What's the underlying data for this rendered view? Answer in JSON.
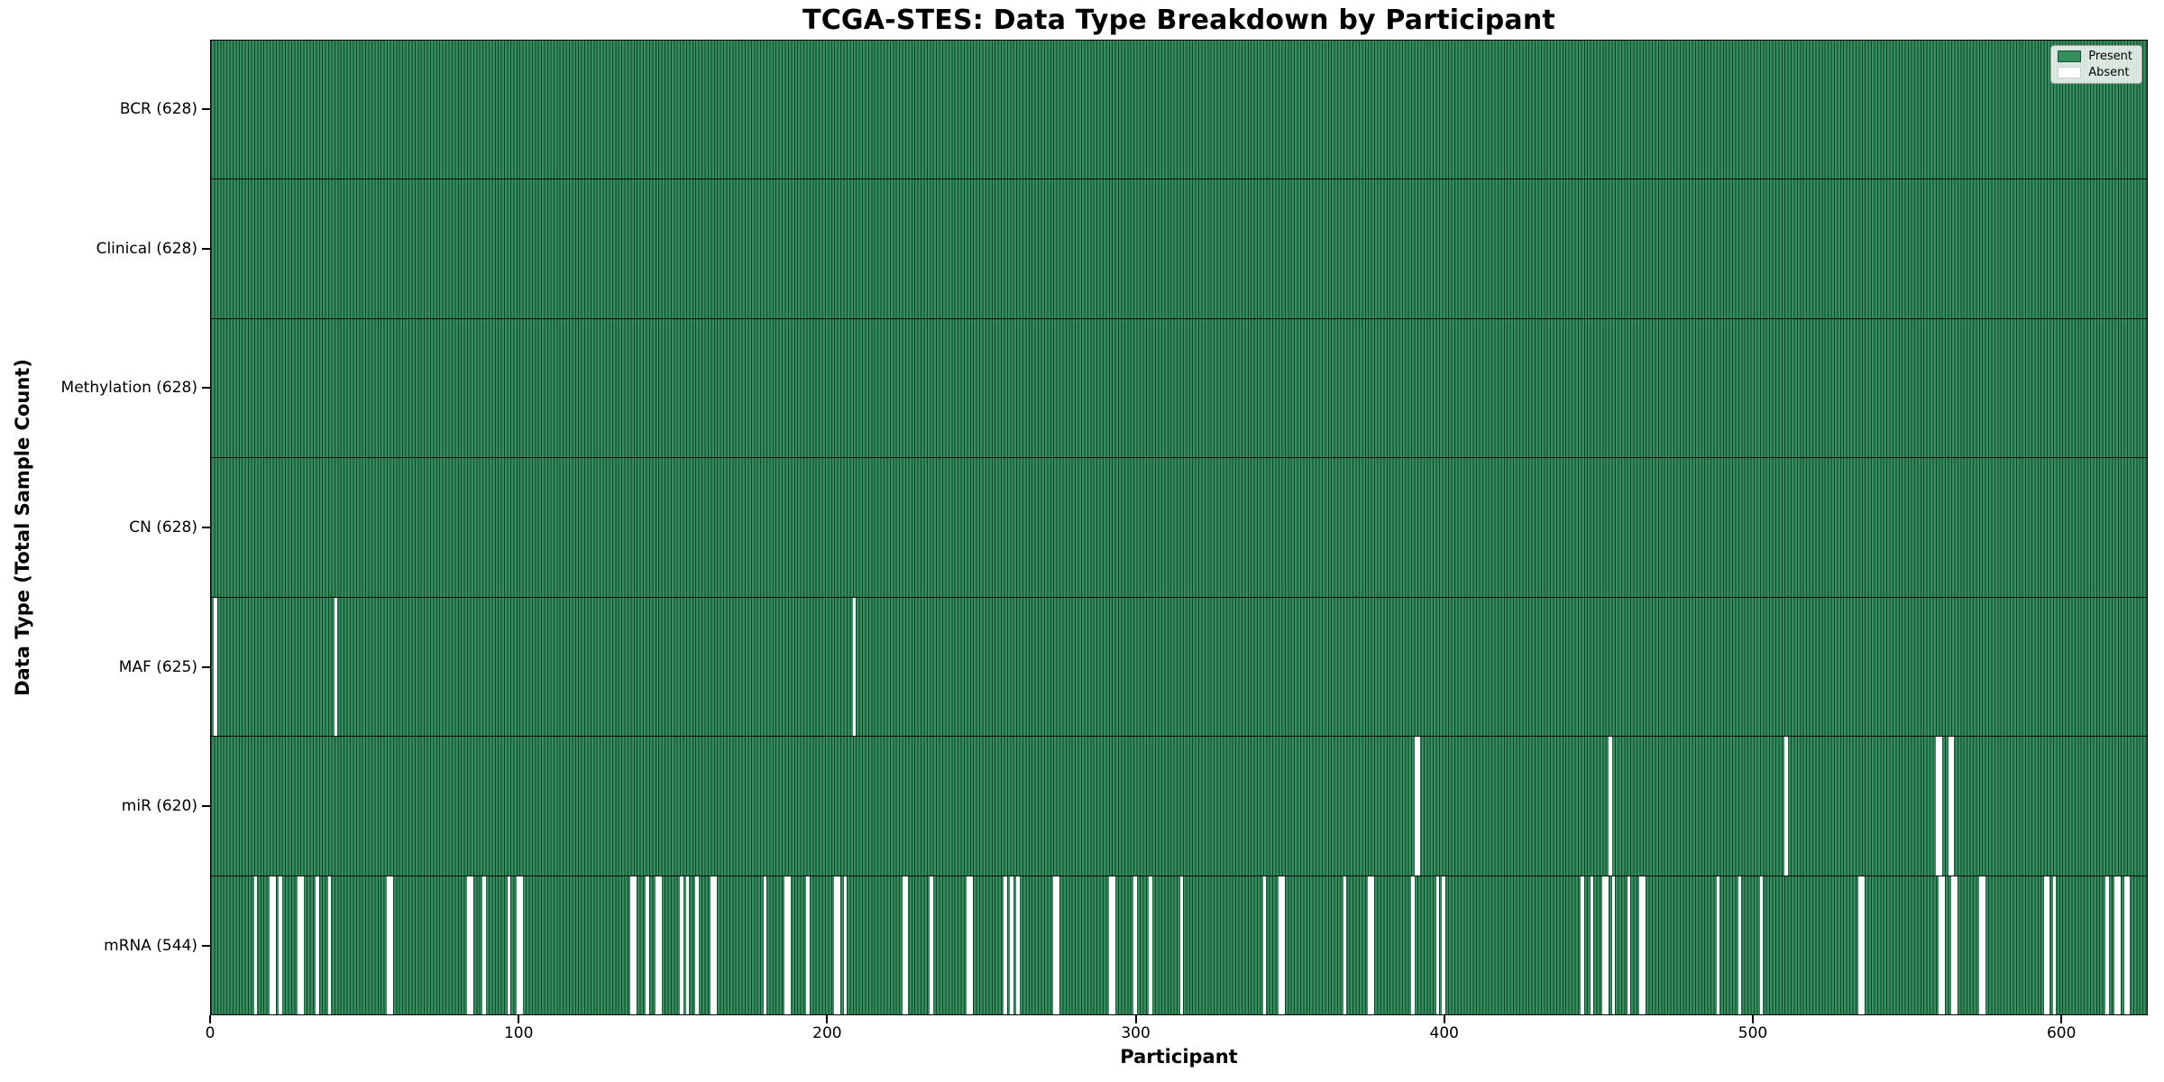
{
  "chart_data": {
    "type": "heatmap",
    "title": "TCGA-STES: Data Type Breakdown by Participant",
    "xlabel": "Participant",
    "ylabel": "Data Type (Total Sample Count)",
    "x_range": [
      0,
      628
    ],
    "x_ticks": [
      0,
      100,
      200,
      300,
      400,
      500,
      600
    ],
    "grid": false,
    "legend_position": "upper right",
    "legend": {
      "present": "Present",
      "absent": "Absent"
    },
    "colors": {
      "present": "#33905E",
      "bar_edge": "#17402B",
      "absent": "#ffffff",
      "row_separator": "#0b0b0b"
    },
    "rows": [
      {
        "key": "bcr",
        "data_type": "BCR",
        "label": "BCR (628)",
        "present_count": 628,
        "absent_count": 0,
        "absent_ranges": []
      },
      {
        "key": "clinical",
        "data_type": "Clinical",
        "label": "Clinical (628)",
        "present_count": 628,
        "absent_count": 0,
        "absent_ranges": []
      },
      {
        "key": "methylation",
        "data_type": "Methylation",
        "label": "Methylation (628)",
        "present_count": 628,
        "absent_count": 0,
        "absent_ranges": []
      },
      {
        "key": "cn",
        "data_type": "CN",
        "label": "CN (628)",
        "present_count": 628,
        "absent_count": 0,
        "absent_ranges": []
      },
      {
        "key": "maf",
        "data_type": "MAF",
        "label": "MAF (625)",
        "present_count": 625,
        "absent_count": 3,
        "absent_ranges": [
          [
            1,
            1
          ],
          [
            40,
            1
          ],
          [
            208,
            1
          ]
        ]
      },
      {
        "key": "mir",
        "data_type": "miR",
        "label": "miR (620)",
        "present_count": 620,
        "absent_count": 8,
        "absent_ranges": [
          [
            390,
            2
          ],
          [
            453,
            1
          ],
          [
            510,
            1
          ],
          [
            559,
            2
          ],
          [
            563,
            2
          ]
        ]
      },
      {
        "key": "mrna",
        "data_type": "mRNA",
        "label": "mRNA (544)",
        "present_count": 544,
        "absent_count": 84,
        "absent_ranges": [
          [
            14,
            1
          ],
          [
            19,
            2
          ],
          [
            22,
            1
          ],
          [
            28,
            2
          ],
          [
            34,
            1
          ],
          [
            38,
            1
          ],
          [
            57,
            2
          ],
          [
            83,
            2
          ],
          [
            88,
            1
          ],
          [
            96,
            1
          ],
          [
            99,
            2
          ],
          [
            136,
            2
          ],
          [
            141,
            1
          ],
          [
            144,
            2
          ],
          [
            152,
            1
          ],
          [
            154,
            1
          ],
          [
            157,
            1
          ],
          [
            162,
            2
          ],
          [
            179,
            1
          ],
          [
            186,
            2
          ],
          [
            193,
            1
          ],
          [
            202,
            2
          ],
          [
            205,
            1
          ],
          [
            224,
            2
          ],
          [
            233,
            1
          ],
          [
            245,
            2
          ],
          [
            257,
            1
          ],
          [
            259,
            1
          ],
          [
            261,
            1
          ],
          [
            273,
            2
          ],
          [
            291,
            2
          ],
          [
            299,
            1
          ],
          [
            304,
            1
          ],
          [
            314,
            1
          ],
          [
            341,
            1
          ],
          [
            346,
            2
          ],
          [
            367,
            1
          ],
          [
            375,
            2
          ],
          [
            389,
            1
          ],
          [
            397,
            1
          ],
          [
            399,
            1
          ],
          [
            444,
            1
          ],
          [
            447,
            1
          ],
          [
            451,
            2
          ],
          [
            454,
            1
          ],
          [
            459,
            1
          ],
          [
            463,
            2
          ],
          [
            488,
            1
          ],
          [
            495,
            1
          ],
          [
            502,
            1
          ],
          [
            534,
            2
          ],
          [
            560,
            2
          ],
          [
            564,
            2
          ],
          [
            573,
            2
          ],
          [
            594,
            2
          ],
          [
            597,
            1
          ],
          [
            614,
            1
          ],
          [
            617,
            2
          ],
          [
            620,
            2
          ]
        ]
      }
    ]
  }
}
